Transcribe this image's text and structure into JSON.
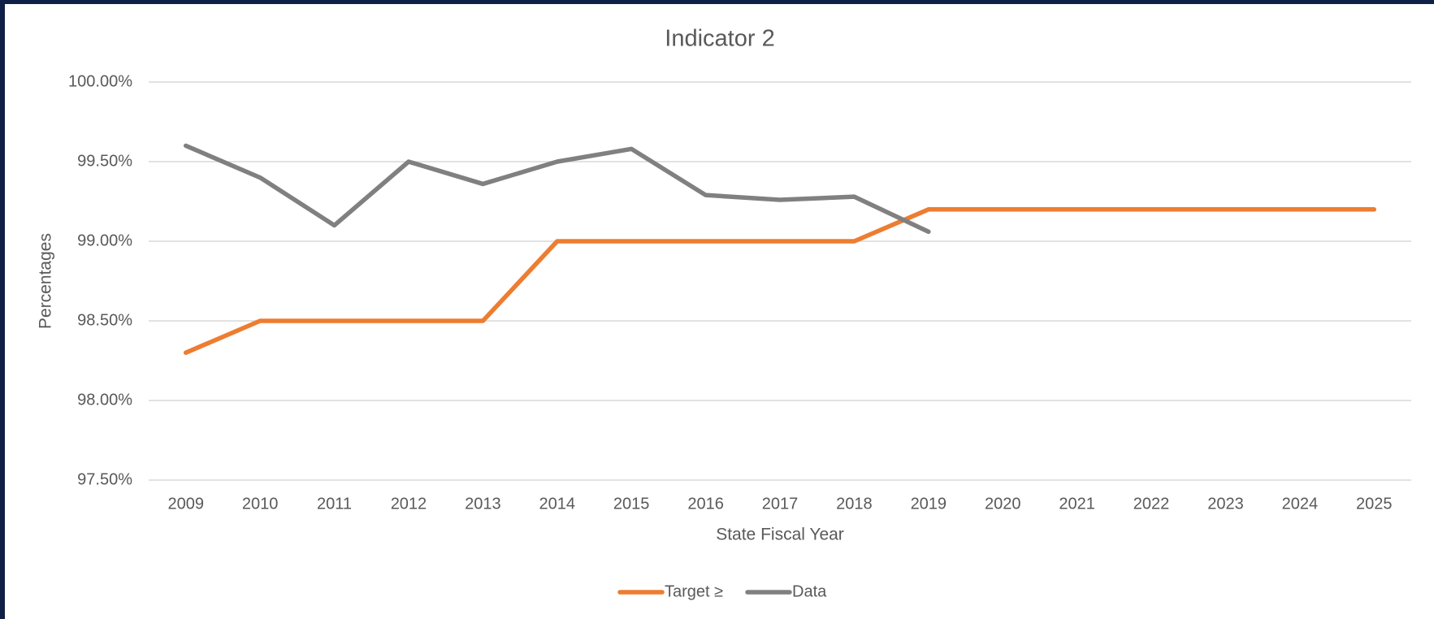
{
  "chart_data": {
    "type": "line",
    "title": "Indicator 2",
    "x_label": "State Fiscal Year",
    "y_label": "Percentages",
    "categories": [
      "2009",
      "2010",
      "2011",
      "2012",
      "2013",
      "2014",
      "2015",
      "2016",
      "2017",
      "2018",
      "2019",
      "2020",
      "2021",
      "2022",
      "2023",
      "2024",
      "2025"
    ],
    "series": [
      {
        "name": "Target ≥",
        "color": "#ed7d31",
        "values": [
          98.3,
          98.5,
          98.5,
          98.5,
          98.5,
          99.0,
          99.0,
          99.0,
          99.0,
          99.0,
          99.2,
          99.2,
          99.2,
          99.2,
          99.2,
          99.2,
          99.2
        ]
      },
      {
        "name": "Data",
        "color": "#808080",
        "values": [
          99.6,
          99.4,
          99.1,
          99.5,
          99.36,
          99.5,
          99.58,
          99.29,
          99.26,
          99.28,
          99.06,
          null,
          null,
          null,
          null,
          null,
          null
        ]
      }
    ],
    "ylim": [
      97.5,
      100
    ],
    "yticks": [
      {
        "value": 97.5,
        "label": "97.50%"
      },
      {
        "value": 98,
        "label": "98.00%"
      },
      {
        "value": 98.5,
        "label": "98.50%"
      },
      {
        "value": 99,
        "label": "99.00%"
      },
      {
        "value": 99.5,
        "label": "99.50%"
      },
      {
        "value": 100,
        "label": "100.00%"
      }
    ],
    "grid": true,
    "legend": "bottom"
  }
}
